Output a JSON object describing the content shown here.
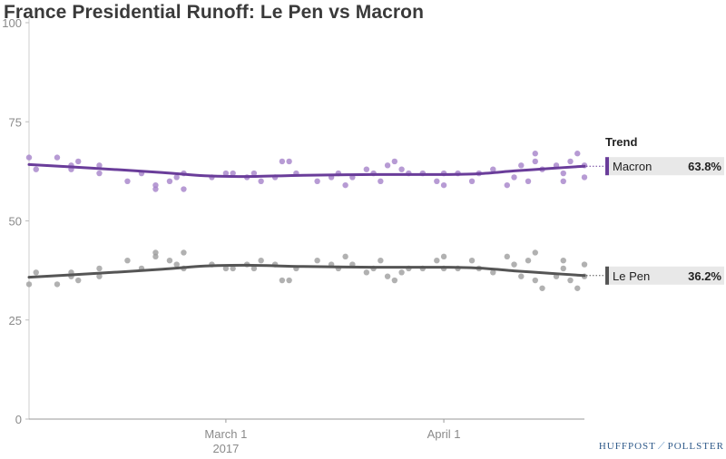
{
  "chart_data": {
    "type": "line",
    "title": "France Presidential Runoff: Le Pen vs Macron",
    "xlabel": "",
    "ylabel": "",
    "ylim": [
      0,
      100
    ],
    "y_ticks": [
      0,
      25,
      50,
      75,
      100
    ],
    "x_range": [
      "2017-02-01",
      "2017-04-21"
    ],
    "x_ticks": [
      {
        "date": "2017-03-01",
        "label": "March 1",
        "sublabel": "2017"
      },
      {
        "date": "2017-04-01",
        "label": "April 1",
        "sublabel": ""
      }
    ],
    "legend_title": "Trend",
    "legend_position": "right",
    "grid": false,
    "series": [
      {
        "name": "Macron",
        "color": "#6a3d9a",
        "point_color": "#a582c9",
        "end_label": "63.8%",
        "trend": [
          {
            "date": "2017-02-01",
            "value": 64.2
          },
          {
            "date": "2017-02-10",
            "value": 63.3
          },
          {
            "date": "2017-02-20",
            "value": 62.2
          },
          {
            "date": "2017-02-26",
            "value": 61.4
          },
          {
            "date": "2017-03-04",
            "value": 61.2
          },
          {
            "date": "2017-03-12",
            "value": 61.5
          },
          {
            "date": "2017-03-22",
            "value": 61.7
          },
          {
            "date": "2017-04-01",
            "value": 61.7
          },
          {
            "date": "2017-04-06",
            "value": 61.9
          },
          {
            "date": "2017-04-11",
            "value": 62.6
          },
          {
            "date": "2017-04-16",
            "value": 63.2
          },
          {
            "date": "2017-04-21",
            "value": 63.8
          }
        ],
        "polls": [
          {
            "date": "2017-02-01",
            "value": 66
          },
          {
            "date": "2017-02-02",
            "value": 63
          },
          {
            "date": "2017-02-05",
            "value": 66
          },
          {
            "date": "2017-02-07",
            "value": 64
          },
          {
            "date": "2017-02-07",
            "value": 63
          },
          {
            "date": "2017-02-08",
            "value": 65
          },
          {
            "date": "2017-02-11",
            "value": 64
          },
          {
            "date": "2017-02-11",
            "value": 62
          },
          {
            "date": "2017-02-15",
            "value": 60
          },
          {
            "date": "2017-02-17",
            "value": 62
          },
          {
            "date": "2017-02-19",
            "value": 59
          },
          {
            "date": "2017-02-19",
            "value": 58
          },
          {
            "date": "2017-02-21",
            "value": 60
          },
          {
            "date": "2017-02-22",
            "value": 61
          },
          {
            "date": "2017-02-23",
            "value": 62
          },
          {
            "date": "2017-02-23",
            "value": 58
          },
          {
            "date": "2017-02-27",
            "value": 61
          },
          {
            "date": "2017-03-01",
            "value": 62
          },
          {
            "date": "2017-03-02",
            "value": 62
          },
          {
            "date": "2017-03-04",
            "value": 61
          },
          {
            "date": "2017-03-05",
            "value": 62
          },
          {
            "date": "2017-03-06",
            "value": 60
          },
          {
            "date": "2017-03-08",
            "value": 61
          },
          {
            "date": "2017-03-09",
            "value": 65
          },
          {
            "date": "2017-03-10",
            "value": 65
          },
          {
            "date": "2017-03-11",
            "value": 62
          },
          {
            "date": "2017-03-14",
            "value": 60
          },
          {
            "date": "2017-03-16",
            "value": 61
          },
          {
            "date": "2017-03-17",
            "value": 62
          },
          {
            "date": "2017-03-18",
            "value": 59
          },
          {
            "date": "2017-03-19",
            "value": 61
          },
          {
            "date": "2017-03-21",
            "value": 63
          },
          {
            "date": "2017-03-22",
            "value": 62
          },
          {
            "date": "2017-03-23",
            "value": 60
          },
          {
            "date": "2017-03-24",
            "value": 64
          },
          {
            "date": "2017-03-25",
            "value": 65
          },
          {
            "date": "2017-03-26",
            "value": 63
          },
          {
            "date": "2017-03-27",
            "value": 62
          },
          {
            "date": "2017-03-29",
            "value": 62
          },
          {
            "date": "2017-03-31",
            "value": 60
          },
          {
            "date": "2017-04-01",
            "value": 59
          },
          {
            "date": "2017-04-01",
            "value": 62
          },
          {
            "date": "2017-04-03",
            "value": 62
          },
          {
            "date": "2017-04-05",
            "value": 60
          },
          {
            "date": "2017-04-06",
            "value": 62
          },
          {
            "date": "2017-04-08",
            "value": 63
          },
          {
            "date": "2017-04-10",
            "value": 59
          },
          {
            "date": "2017-04-11",
            "value": 61
          },
          {
            "date": "2017-04-12",
            "value": 64
          },
          {
            "date": "2017-04-13",
            "value": 60
          },
          {
            "date": "2017-04-14",
            "value": 65
          },
          {
            "date": "2017-04-14",
            "value": 67
          },
          {
            "date": "2017-04-15",
            "value": 63
          },
          {
            "date": "2017-04-17",
            "value": 64
          },
          {
            "date": "2017-04-18",
            "value": 62
          },
          {
            "date": "2017-04-18",
            "value": 60
          },
          {
            "date": "2017-04-19",
            "value": 65
          },
          {
            "date": "2017-04-20",
            "value": 67
          },
          {
            "date": "2017-04-21",
            "value": 64
          },
          {
            "date": "2017-04-21",
            "value": 61
          }
        ]
      },
      {
        "name": "Le Pen",
        "color": "#555555",
        "point_color": "#9e9e9e",
        "end_label": "36.2%",
        "trend": [
          {
            "date": "2017-02-01",
            "value": 35.8
          },
          {
            "date": "2017-02-10",
            "value": 36.7
          },
          {
            "date": "2017-02-20",
            "value": 37.8
          },
          {
            "date": "2017-02-26",
            "value": 38.6
          },
          {
            "date": "2017-03-04",
            "value": 38.8
          },
          {
            "date": "2017-03-12",
            "value": 38.5
          },
          {
            "date": "2017-03-22",
            "value": 38.3
          },
          {
            "date": "2017-04-01",
            "value": 38.3
          },
          {
            "date": "2017-04-06",
            "value": 38.1
          },
          {
            "date": "2017-04-11",
            "value": 37.4
          },
          {
            "date": "2017-04-16",
            "value": 36.8
          },
          {
            "date": "2017-04-21",
            "value": 36.2
          }
        ],
        "polls": [
          {
            "date": "2017-02-01",
            "value": 34
          },
          {
            "date": "2017-02-02",
            "value": 37
          },
          {
            "date": "2017-02-05",
            "value": 34
          },
          {
            "date": "2017-02-07",
            "value": 36
          },
          {
            "date": "2017-02-07",
            "value": 37
          },
          {
            "date": "2017-02-08",
            "value": 35
          },
          {
            "date": "2017-02-11",
            "value": 36
          },
          {
            "date": "2017-02-11",
            "value": 38
          },
          {
            "date": "2017-02-15",
            "value": 40
          },
          {
            "date": "2017-02-17",
            "value": 38
          },
          {
            "date": "2017-02-19",
            "value": 41
          },
          {
            "date": "2017-02-19",
            "value": 42
          },
          {
            "date": "2017-02-21",
            "value": 40
          },
          {
            "date": "2017-02-22",
            "value": 39
          },
          {
            "date": "2017-02-23",
            "value": 38
          },
          {
            "date": "2017-02-23",
            "value": 42
          },
          {
            "date": "2017-02-27",
            "value": 39
          },
          {
            "date": "2017-03-01",
            "value": 38
          },
          {
            "date": "2017-03-02",
            "value": 38
          },
          {
            "date": "2017-03-04",
            "value": 39
          },
          {
            "date": "2017-03-05",
            "value": 38
          },
          {
            "date": "2017-03-06",
            "value": 40
          },
          {
            "date": "2017-03-08",
            "value": 39
          },
          {
            "date": "2017-03-09",
            "value": 35
          },
          {
            "date": "2017-03-10",
            "value": 35
          },
          {
            "date": "2017-03-11",
            "value": 38
          },
          {
            "date": "2017-03-14",
            "value": 40
          },
          {
            "date": "2017-03-16",
            "value": 39
          },
          {
            "date": "2017-03-17",
            "value": 38
          },
          {
            "date": "2017-03-18",
            "value": 41
          },
          {
            "date": "2017-03-19",
            "value": 39
          },
          {
            "date": "2017-03-21",
            "value": 37
          },
          {
            "date": "2017-03-22",
            "value": 38
          },
          {
            "date": "2017-03-23",
            "value": 40
          },
          {
            "date": "2017-03-24",
            "value": 36
          },
          {
            "date": "2017-03-25",
            "value": 35
          },
          {
            "date": "2017-03-26",
            "value": 37
          },
          {
            "date": "2017-03-27",
            "value": 38
          },
          {
            "date": "2017-03-29",
            "value": 38
          },
          {
            "date": "2017-03-31",
            "value": 40
          },
          {
            "date": "2017-04-01",
            "value": 41
          },
          {
            "date": "2017-04-01",
            "value": 38
          },
          {
            "date": "2017-04-03",
            "value": 38
          },
          {
            "date": "2017-04-05",
            "value": 40
          },
          {
            "date": "2017-04-06",
            "value": 38
          },
          {
            "date": "2017-04-08",
            "value": 37
          },
          {
            "date": "2017-04-10",
            "value": 41
          },
          {
            "date": "2017-04-11",
            "value": 39
          },
          {
            "date": "2017-04-12",
            "value": 36
          },
          {
            "date": "2017-04-13",
            "value": 40
          },
          {
            "date": "2017-04-14",
            "value": 35
          },
          {
            "date": "2017-04-14",
            "value": 42
          },
          {
            "date": "2017-04-15",
            "value": 33
          },
          {
            "date": "2017-04-17",
            "value": 36
          },
          {
            "date": "2017-04-18",
            "value": 38
          },
          {
            "date": "2017-04-18",
            "value": 40
          },
          {
            "date": "2017-04-19",
            "value": 35
          },
          {
            "date": "2017-04-20",
            "value": 33
          },
          {
            "date": "2017-04-21",
            "value": 36
          },
          {
            "date": "2017-04-21",
            "value": 39
          }
        ]
      }
    ]
  },
  "branding": {
    "left": "HUFFPOST",
    "right": "POLLSTER"
  }
}
